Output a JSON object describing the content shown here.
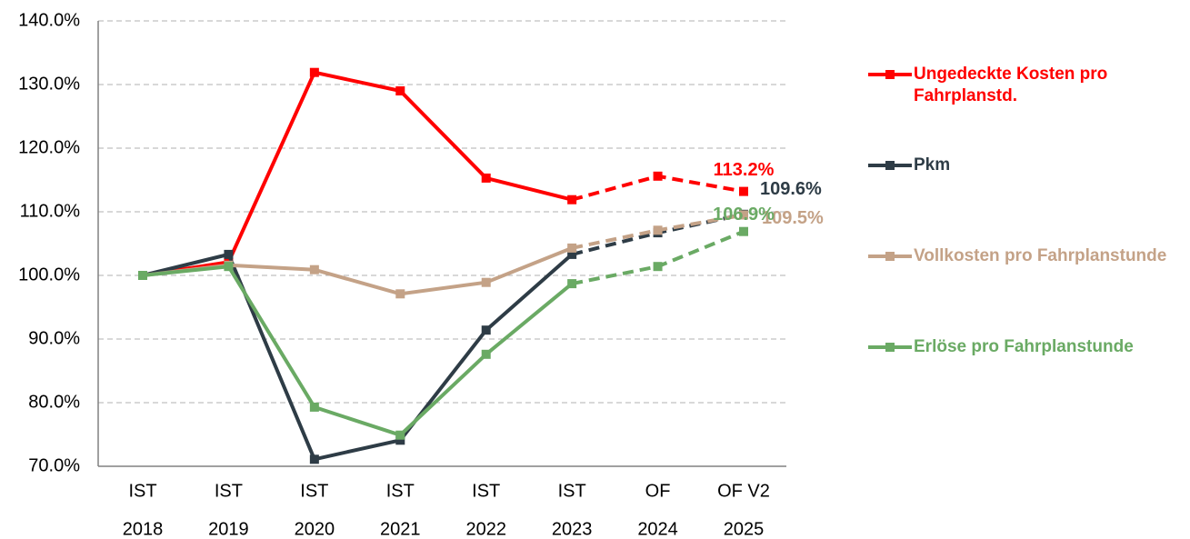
{
  "chart_data": {
    "type": "line",
    "categories": [
      [
        "IST",
        "2018"
      ],
      [
        "IST",
        "2019"
      ],
      [
        "IST",
        "2020"
      ],
      [
        "IST",
        "2021"
      ],
      [
        "IST",
        "2022"
      ],
      [
        "IST",
        "2023"
      ],
      [
        "OF",
        "2024"
      ],
      [
        "OF V2",
        "2025"
      ]
    ],
    "dashed_from_index": 5,
    "ylim": [
      70,
      140
    ],
    "yticks": [
      {
        "value": 70,
        "label": "70.0%"
      },
      {
        "value": 80,
        "label": "80.0%"
      },
      {
        "value": 90,
        "label": "90.0%"
      },
      {
        "value": 100,
        "label": "100.0%"
      },
      {
        "value": 110,
        "label": "110.0%"
      },
      {
        "value": 120,
        "label": "120.0%"
      },
      {
        "value": 130,
        "label": "130.0%"
      },
      {
        "value": 140,
        "label": "140.0%"
      }
    ],
    "grid": true,
    "legend": "right",
    "series": [
      {
        "name": "Ungedeckte Kosten pro Fahrplanstd.",
        "color": "#ff0000",
        "values": [
          100,
          102.1,
          131.9,
          129.0,
          115.3,
          111.9,
          115.6,
          113.2
        ],
        "value_labels": [
          null,
          null,
          null,
          null,
          null,
          null,
          null,
          "113.2%"
        ]
      },
      {
        "name": "Pkm",
        "color": "#2e3c46",
        "values": [
          100,
          103.3,
          71.1,
          74.1,
          91.4,
          103.3,
          106.7,
          109.6
        ],
        "value_labels": [
          null,
          null,
          null,
          null,
          null,
          null,
          null,
          "109.6%"
        ]
      },
      {
        "name": "Vollkosten pro Fahrplanstunde",
        "color": "#c4a287",
        "values": [
          100,
          101.6,
          100.9,
          97.1,
          98.9,
          104.3,
          107.1,
          109.5
        ],
        "value_labels": [
          null,
          null,
          null,
          null,
          null,
          null,
          null,
          "109.5%"
        ]
      },
      {
        "name": "Erlöse pro Fahrplanstunde",
        "color": "#6aaa64",
        "values": [
          100,
          101.4,
          79.3,
          74.9,
          87.6,
          98.7,
          101.4,
          106.9
        ],
        "value_labels": [
          null,
          null,
          null,
          null,
          null,
          null,
          null,
          "106.9%"
        ]
      }
    ]
  }
}
